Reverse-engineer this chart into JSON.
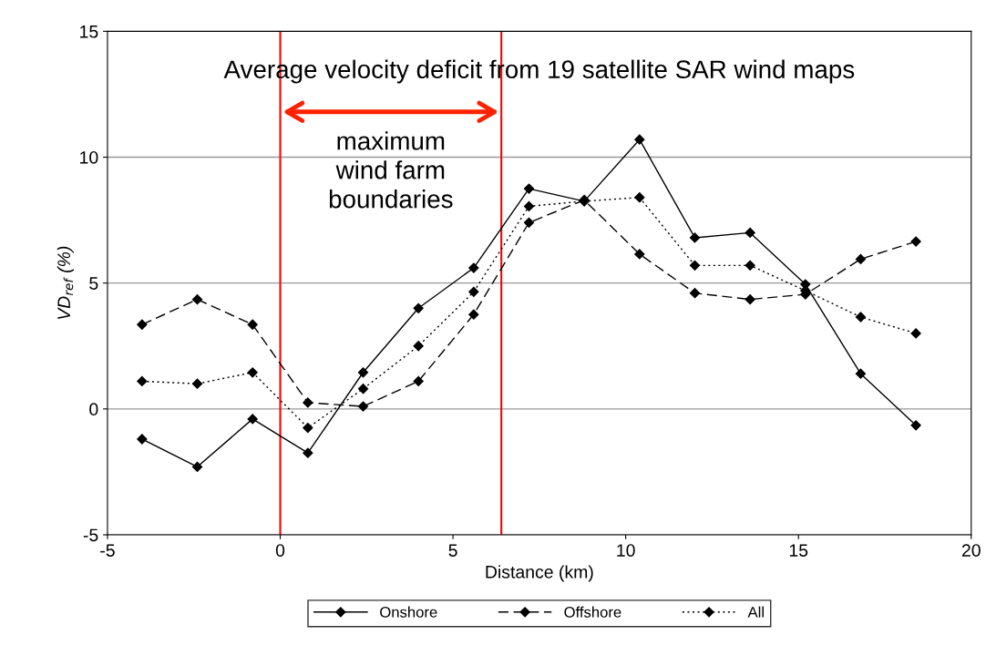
{
  "chart_data": {
    "type": "line",
    "title": "Average velocity deficit from 19 satellite SAR wind maps",
    "xlabel": "Distance (km)",
    "ylabel": "VD$_{ref}$ (%)",
    "x": [
      -4.0,
      -2.4,
      -0.8,
      0.8,
      2.4,
      4.0,
      5.6,
      7.2,
      8.8,
      10.4,
      12.0,
      13.6,
      15.2,
      16.8,
      18.4
    ],
    "series": [
      {
        "name": "Onshore",
        "color": "#000000",
        "line_style": "solid",
        "values": [
          -1.2,
          -2.3,
          -0.4,
          -1.75,
          1.45,
          4.0,
          5.6,
          8.75,
          8.25,
          10.7,
          6.8,
          7.0,
          4.95,
          1.4,
          -0.65
        ]
      },
      {
        "name": "Offshore",
        "color": "#000000",
        "line_style": "dashed",
        "values": [
          3.35,
          4.35,
          3.35,
          0.25,
          0.1,
          1.1,
          3.75,
          7.4,
          8.3,
          6.15,
          4.6,
          4.35,
          4.55,
          5.95,
          6.65
        ]
      },
      {
        "name": "All",
        "color": "#000000",
        "line_style": "dotted",
        "values": [
          1.1,
          1.0,
          1.45,
          -0.75,
          0.8,
          2.5,
          4.65,
          8.05,
          8.25,
          8.4,
          5.7,
          5.7,
          4.7,
          3.65,
          3.0
        ]
      }
    ],
    "xlim": [
      -5,
      20
    ],
    "xticks": [
      -5,
      0,
      5,
      10,
      15,
      20
    ],
    "ylim": [
      -5,
      15
    ],
    "yticks": [
      -5,
      0,
      5,
      10,
      15
    ],
    "ref_lines": [
      {
        "axis": "x",
        "value": 0,
        "color": "#ff0000"
      },
      {
        "axis": "x",
        "value": 6.4,
        "color": "#ff0000"
      }
    ],
    "annotations": [
      "maximum\nwind farm\nboundaries"
    ],
    "grid": "y",
    "legend": "bottom",
    "marker": "diamond"
  }
}
